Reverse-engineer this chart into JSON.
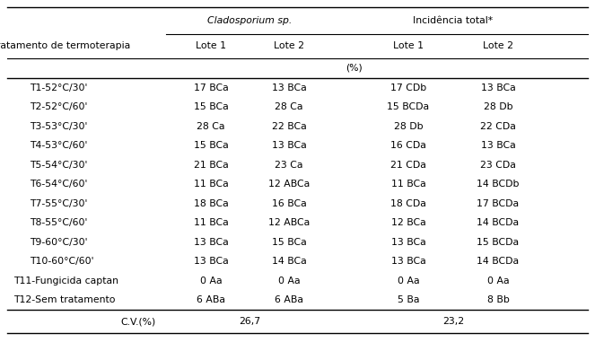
{
  "title_row1_clad": "Cladosporium sp.",
  "title_row1_inc": "Incidência total*",
  "col_headers": [
    "Tratamento de termoterapia",
    "Lote 1",
    "Lote 2",
    "Lote 1",
    "Lote 2"
  ],
  "unit": "(%)",
  "rows": [
    [
      "T1-52°C/30'",
      "17 BCa",
      "13 BCa",
      "17 CDb",
      "13 BCa"
    ],
    [
      "T2-52°C/60'",
      "15 BCa",
      "28 Ca",
      "15 BCDa",
      "28 Db"
    ],
    [
      "T3-53°C/30'",
      "28 Ca",
      "22 BCa",
      "28 Db",
      "22 CDa"
    ],
    [
      "T4-53°C/60'",
      "15 BCa",
      "13 BCa",
      "16 CDa",
      "13 BCa"
    ],
    [
      "T5-54°C/30'",
      "21 BCa",
      "23 Ca",
      "21 CDa",
      "23 CDa"
    ],
    [
      "T6-54°C/60'",
      "11 BCa",
      "12 ABCa",
      "11 BCa",
      "14 BCDb"
    ],
    [
      "T7-55°C/30'",
      "18 BCa",
      "16 BCa",
      "18 CDa",
      "17 BCDa"
    ],
    [
      "T8-55°C/60'",
      "11 BCa",
      "12 ABCa",
      "12 BCa",
      "14 BCDa"
    ],
    [
      "T9-60°C/30'",
      "13 BCa",
      "15 BCa",
      "13 BCa",
      "15 BCDa"
    ],
    [
      "T10-60°C/60'",
      "13 BCa",
      "14 BCa",
      "13 BCa",
      "14 BCDa"
    ],
    [
      "T11-Fungicida captan",
      "0 Aa",
      "0 Aa",
      "0 Aa",
      "0 Aa"
    ],
    [
      "T12-Sem tratamento",
      "6 ABa",
      "6 ABa",
      "5 Ba",
      "8 Bb"
    ]
  ],
  "cv_label": "C.V.(%)",
  "cv1": "26,7",
  "cv2": "23,2",
  "fig_width": 6.63,
  "fig_height": 4.01,
  "dpi": 100,
  "font_size": 7.8,
  "bg_color": "#ffffff"
}
